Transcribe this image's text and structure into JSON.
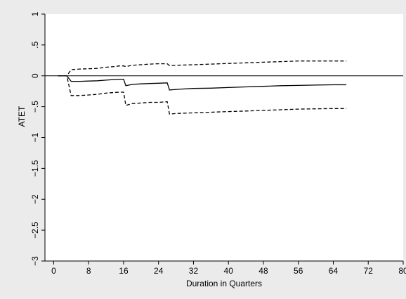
{
  "chart_data": {
    "type": "line",
    "xlabel": "Duration in Quarters",
    "ylabel": "ATET",
    "xlim": [
      -2,
      80
    ],
    "ylim": [
      -3,
      1
    ],
    "xticks": [
      0,
      8,
      16,
      24,
      32,
      40,
      48,
      56,
      64,
      72,
      80
    ],
    "yticks": [
      1,
      0.5,
      0,
      -0.5,
      -1,
      -1.5,
      -2,
      -2.5,
      -3
    ],
    "ytick_labels": [
      "1",
      ".5",
      "0",
      "−.5",
      "−1",
      "−1.5",
      "−2",
      "−2.5",
      "−3"
    ],
    "grid": false,
    "reference_line": 0,
    "colors": {
      "background": "#ebebeb",
      "plot": "#ffffff",
      "line": "#000000"
    },
    "series": [
      {
        "style": "solid",
        "x": [
          1,
          2,
          3,
          4,
          6,
          8,
          10,
          12,
          14,
          15,
          16,
          16.5,
          18,
          20,
          22,
          24,
          26,
          26.5,
          28,
          32,
          36,
          40,
          44,
          48,
          52,
          56,
          60,
          64,
          67
        ],
        "y": [
          0,
          0,
          0,
          -0.09,
          -0.09,
          -0.085,
          -0.08,
          -0.07,
          -0.06,
          -0.055,
          -0.055,
          -0.16,
          -0.14,
          -0.13,
          -0.125,
          -0.12,
          -0.115,
          -0.23,
          -0.22,
          -0.205,
          -0.2,
          -0.19,
          -0.18,
          -0.17,
          -0.16,
          -0.155,
          -0.15,
          -0.145,
          -0.145
        ]
      },
      {
        "style": "dashed",
        "x": [
          1,
          2,
          3,
          4,
          6,
          8,
          10,
          12,
          14,
          15,
          16,
          16.5,
          18,
          20,
          22,
          24,
          26,
          26.5,
          28,
          32,
          36,
          40,
          44,
          48,
          52,
          56,
          60,
          64,
          67
        ],
        "y": [
          0,
          0,
          0,
          0.1,
          0.11,
          0.115,
          0.12,
          0.14,
          0.15,
          0.16,
          0.16,
          0.15,
          0.17,
          0.18,
          0.19,
          0.195,
          0.195,
          0.165,
          0.17,
          0.18,
          0.19,
          0.2,
          0.21,
          0.22,
          0.23,
          0.24,
          0.24,
          0.24,
          0.24
        ]
      },
      {
        "style": "dashed",
        "x": [
          1,
          2,
          3,
          4,
          6,
          8,
          10,
          12,
          14,
          15,
          16,
          16.5,
          18,
          20,
          22,
          24,
          26,
          26.5,
          28,
          32,
          36,
          40,
          44,
          48,
          52,
          56,
          60,
          64,
          67
        ],
        "y": [
          0,
          0,
          0,
          -0.32,
          -0.32,
          -0.31,
          -0.3,
          -0.28,
          -0.27,
          -0.265,
          -0.265,
          -0.48,
          -0.45,
          -0.44,
          -0.43,
          -0.43,
          -0.42,
          -0.62,
          -0.61,
          -0.6,
          -0.59,
          -0.58,
          -0.57,
          -0.56,
          -0.55,
          -0.54,
          -0.535,
          -0.53,
          -0.53
        ]
      }
    ]
  }
}
